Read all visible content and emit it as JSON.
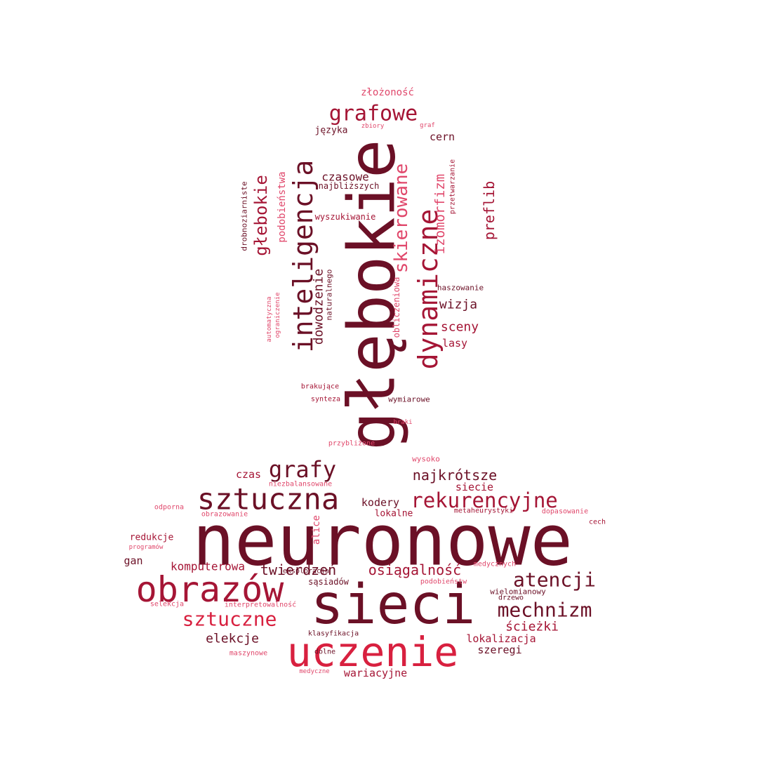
{
  "colors": {
    "dark": "#6b1026",
    "mid": "#a51535",
    "bright": "#d8203f",
    "pink": "#e0476b"
  },
  "words": [
    {
      "text": "neuronowe",
      "color": "dark"
    },
    {
      "text": "głębokie",
      "color": "dark"
    },
    {
      "text": "sieci",
      "color": "dark"
    },
    {
      "text": "uczenie",
      "color": "bright"
    },
    {
      "text": "obrazów",
      "color": "mid"
    },
    {
      "text": "sztuczna",
      "color": "dark"
    },
    {
      "text": "inteligencja",
      "color": "dark"
    },
    {
      "text": "dynamiczne",
      "color": "mid"
    },
    {
      "text": "skierowane",
      "color": "pink"
    },
    {
      "text": "grafowe",
      "color": "mid"
    },
    {
      "text": "rekurencyjne",
      "color": "mid"
    },
    {
      "text": "sztuczne",
      "color": "bright"
    },
    {
      "text": "mechnizm",
      "color": "dark"
    },
    {
      "text": "atencji",
      "color": "dark"
    },
    {
      "text": "grafy",
      "color": "dark"
    },
    {
      "text": "głebokie",
      "color": "mid"
    },
    {
      "text": "izomorfizm",
      "color": "pink"
    },
    {
      "text": "najkrótsze",
      "color": "dark"
    },
    {
      "text": "osiągalność",
      "color": "mid"
    },
    {
      "text": "twierdzeń",
      "color": "dark"
    },
    {
      "text": "preflib",
      "color": "mid"
    },
    {
      "text": "dowodzenie",
      "color": "dark"
    },
    {
      "text": "elekcje",
      "color": "dark"
    },
    {
      "text": "ścieżki",
      "color": "mid"
    },
    {
      "text": "wizja",
      "color": "dark"
    },
    {
      "text": "sceny",
      "color": "mid"
    },
    {
      "text": "komputerowa",
      "color": "mid"
    },
    {
      "text": "lokalizacja",
      "color": "mid"
    },
    {
      "text": "szeregi",
      "color": "dark"
    },
    {
      "text": "czasowe",
      "color": "dark"
    },
    {
      "text": "wariacyjne",
      "color": "mid"
    },
    {
      "text": "kodery",
      "color": "dark"
    },
    {
      "text": "czas",
      "color": "mid"
    },
    {
      "text": "podobieństwa",
      "color": "pink"
    },
    {
      "text": "lasy",
      "color": "mid"
    },
    {
      "text": "cern",
      "color": "dark"
    },
    {
      "text": "gan",
      "color": "dark"
    },
    {
      "text": "alice",
      "color": "pink"
    },
    {
      "text": "siecie",
      "color": "mid"
    },
    {
      "text": "złożoność",
      "color": "pink"
    },
    {
      "text": "redukcje",
      "color": "mid"
    },
    {
      "text": "lokalne",
      "color": "mid"
    },
    {
      "text": "obliczeniowa",
      "color": "pink"
    },
    {
      "text": "języka",
      "color": "dark"
    },
    {
      "text": "naturalnego",
      "color": "dark"
    },
    {
      "text": "najbliższych",
      "color": "dark"
    },
    {
      "text": "sąsiadów",
      "color": "dark"
    },
    {
      "text": "wyszukiwanie",
      "color": "mid"
    },
    {
      "text": "wymiarowe",
      "color": "dark"
    },
    {
      "text": "haszowanie",
      "color": "dark"
    },
    {
      "text": "przetwarzanie",
      "color": "mid"
    },
    {
      "text": "drobnoziarniste",
      "color": "dark"
    },
    {
      "text": "wysoko",
      "color": "pink"
    },
    {
      "text": "niezbalansowane",
      "color": "pink"
    },
    {
      "text": "eksploracja",
      "color": "dark"
    },
    {
      "text": "podobieństw",
      "color": "pink"
    },
    {
      "text": "wielomianowy",
      "color": "dark"
    },
    {
      "text": "drzewo",
      "color": "dark"
    },
    {
      "text": "brakujące",
      "color": "mid"
    },
    {
      "text": "synteza",
      "color": "mid"
    },
    {
      "text": "braki",
      "color": "pink"
    },
    {
      "text": "przybliżone",
      "color": "pink"
    },
    {
      "text": "metaheurystyki",
      "color": "mid"
    },
    {
      "text": "dopasowanie",
      "color": "pink"
    },
    {
      "text": "cech",
      "color": "mid"
    },
    {
      "text": "odporna",
      "color": "pink"
    },
    {
      "text": "obrazowanie",
      "color": "pink"
    },
    {
      "text": "programów",
      "color": "pink"
    },
    {
      "text": "medycznych",
      "color": "pink"
    },
    {
      "text": "selekcja",
      "color": "pink"
    },
    {
      "text": "interpretowalność",
      "color": "pink"
    },
    {
      "text": "klasyfikacja",
      "color": "dark"
    },
    {
      "text": "maszynowe",
      "color": "pink"
    },
    {
      "text": "dolne",
      "color": "dark"
    },
    {
      "text": "medyczne",
      "color": "pink"
    },
    {
      "text": "zbiory",
      "color": "pink"
    },
    {
      "text": "graf",
      "color": "pink"
    },
    {
      "text": "automatyczna",
      "color": "pink"
    },
    {
      "text": "ograniczenie",
      "color": "pink"
    }
  ]
}
